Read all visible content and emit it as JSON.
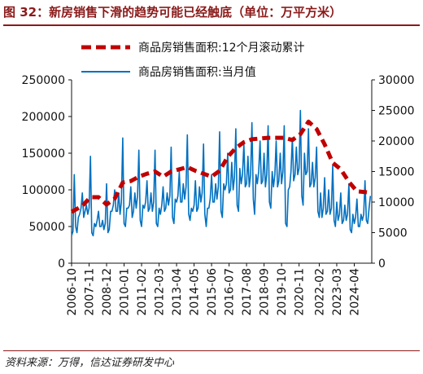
{
  "figure": {
    "title": "图 32：新房销售下滑的趋势可能已经触底（单位：万平方米）",
    "source": "资料来源：万得，信达证券研发中心"
  },
  "chart_data": {
    "type": "line",
    "title": "",
    "xlabel": "",
    "ylabel": "",
    "grid": false,
    "legend_placement": "top",
    "x_tick_labels": [
      "2006-10",
      "2007-11",
      "2008-12",
      "2010-01",
      "2011-02",
      "2012-03",
      "2013-04",
      "2014-05",
      "2015-06",
      "2016-07",
      "2017-08",
      "2018-09",
      "2019-10",
      "2020-11",
      "2022-02",
      "2023-03",
      "2024-04"
    ],
    "x_range": [
      "2006-10",
      "2025-05"
    ],
    "y_left": {
      "ylim": [
        0,
        250000
      ],
      "ticks": [
        "0",
        "50000",
        "100000",
        "150000",
        "200000",
        "250000"
      ]
    },
    "y_right": {
      "ylim": [
        0,
        30000
      ],
      "ticks": [
        "0",
        "5000",
        "10000",
        "15000",
        "20000",
        "25000",
        "30000"
      ]
    },
    "series": [
      {
        "name": "商品房销售面积:12个月滚动累计",
        "axis": "left",
        "color": "#c00000",
        "style": "dashed-thick",
        "points": [
          [
            "2006-10",
            70000
          ],
          [
            "2007-06",
            78000
          ],
          [
            "2007-12",
            90000
          ],
          [
            "2008-06",
            90000
          ],
          [
            "2008-12",
            80000
          ],
          [
            "2009-06",
            88000
          ],
          [
            "2009-12",
            110000
          ],
          [
            "2010-06",
            112000
          ],
          [
            "2010-12",
            118000
          ],
          [
            "2011-06",
            122000
          ],
          [
            "2011-12",
            125000
          ],
          [
            "2012-06",
            118000
          ],
          [
            "2012-12",
            125000
          ],
          [
            "2013-06",
            128000
          ],
          [
            "2013-12",
            131000
          ],
          [
            "2014-06",
            126000
          ],
          [
            "2014-12",
            122000
          ],
          [
            "2015-06",
            118000
          ],
          [
            "2015-12",
            126000
          ],
          [
            "2016-06",
            145000
          ],
          [
            "2016-12",
            157000
          ],
          [
            "2017-06",
            165000
          ],
          [
            "2017-12",
            169000
          ],
          [
            "2018-06",
            170000
          ],
          [
            "2018-12",
            171000
          ],
          [
            "2019-06",
            171000
          ],
          [
            "2019-12",
            171000
          ],
          [
            "2020-06",
            168000
          ],
          [
            "2020-12",
            176000
          ],
          [
            "2021-06",
            193000
          ],
          [
            "2021-12",
            183000
          ],
          [
            "2022-06",
            162000
          ],
          [
            "2022-12",
            137000
          ],
          [
            "2023-06",
            128000
          ],
          [
            "2023-12",
            111000
          ],
          [
            "2024-06",
            98000
          ],
          [
            "2024-12",
            97000
          ],
          [
            "2025-04",
            96000
          ]
        ]
      },
      {
        "name": "商品房销售面积:当月值",
        "axis": "right",
        "color": "#0070c0",
        "style": "solid",
        "points": [
          [
            "2006-10",
            4500
          ],
          [
            "2006-11",
            5200
          ],
          [
            "2006-12",
            14500
          ],
          [
            "2007-01",
            6000
          ],
          [
            "2007-02",
            5000
          ],
          [
            "2007-03",
            7500
          ],
          [
            "2007-04",
            8000
          ],
          [
            "2007-05",
            9000
          ],
          [
            "2007-06",
            11500
          ],
          [
            "2007-07",
            7500
          ],
          [
            "2007-08",
            8500
          ],
          [
            "2007-09",
            9500
          ],
          [
            "2007-10",
            8000
          ],
          [
            "2007-11",
            9000
          ],
          [
            "2007-12",
            17500
          ],
          [
            "2008-01",
            5000
          ],
          [
            "2008-02",
            4500
          ],
          [
            "2008-03",
            6500
          ],
          [
            "2008-04",
            6000
          ],
          [
            "2008-05",
            7000
          ],
          [
            "2008-06",
            8500
          ],
          [
            "2008-07",
            6000
          ],
          [
            "2008-08",
            6000
          ],
          [
            "2008-09",
            7000
          ],
          [
            "2008-10",
            5500
          ],
          [
            "2008-11",
            6500
          ],
          [
            "2008-12",
            13000
          ],
          [
            "2009-01",
            5000
          ],
          [
            "2009-02",
            5500
          ],
          [
            "2009-03",
            8500
          ],
          [
            "2009-04",
            8500
          ],
          [
            "2009-05",
            9500
          ],
          [
            "2009-06",
            12000
          ],
          [
            "2009-07",
            8500
          ],
          [
            "2009-08",
            8500
          ],
          [
            "2009-09",
            11500
          ],
          [
            "2009-10",
            8000
          ],
          [
            "2009-11",
            10000
          ],
          [
            "2009-12",
            20500
          ],
          [
            "2010-01",
            6500
          ],
          [
            "2010-02",
            6000
          ],
          [
            "2010-03",
            9000
          ],
          [
            "2010-04",
            9000
          ],
          [
            "2010-05",
            9500
          ],
          [
            "2010-06",
            12500
          ],
          [
            "2010-07",
            7500
          ],
          [
            "2010-08",
            8500
          ],
          [
            "2010-09",
            11500
          ],
          [
            "2010-10",
            9000
          ],
          [
            "2010-11",
            11000
          ],
          [
            "2010-12",
            18500
          ],
          [
            "2011-01",
            7000
          ],
          [
            "2011-02",
            6000
          ],
          [
            "2011-03",
            9500
          ],
          [
            "2011-04",
            9000
          ],
          [
            "2011-05",
            10000
          ],
          [
            "2011-06",
            13500
          ],
          [
            "2011-07",
            8500
          ],
          [
            "2011-08",
            9000
          ],
          [
            "2011-09",
            11500
          ],
          [
            "2011-10",
            8500
          ],
          [
            "2011-11",
            10000
          ],
          [
            "2011-12",
            18500
          ],
          [
            "2012-01",
            6500
          ],
          [
            "2012-02",
            6000
          ],
          [
            "2012-03",
            9000
          ],
          [
            "2012-04",
            8000
          ],
          [
            "2012-05",
            9500
          ],
          [
            "2012-06",
            12500
          ],
          [
            "2012-07",
            8500
          ],
          [
            "2012-08",
            9000
          ],
          [
            "2012-09",
            11500
          ],
          [
            "2012-10",
            9500
          ],
          [
            "2012-11",
            11000
          ],
          [
            "2012-12",
            19000
          ],
          [
            "2013-01",
            7500
          ],
          [
            "2013-02",
            6500
          ],
          [
            "2013-03",
            10500
          ],
          [
            "2013-04",
            10000
          ],
          [
            "2013-05",
            11000
          ],
          [
            "2013-06",
            15000
          ],
          [
            "2013-07",
            10000
          ],
          [
            "2013-08",
            10000
          ],
          [
            "2013-09",
            13000
          ],
          [
            "2013-10",
            10500
          ],
          [
            "2013-11",
            12500
          ],
          [
            "2013-12",
            21000
          ],
          [
            "2014-01",
            8000
          ],
          [
            "2014-02",
            7000
          ],
          [
            "2014-03",
            9000
          ],
          [
            "2014-04",
            8500
          ],
          [
            "2014-05",
            9500
          ],
          [
            "2014-06",
            13500
          ],
          [
            "2014-07",
            8500
          ],
          [
            "2014-08",
            9000
          ],
          [
            "2014-09",
            12500
          ],
          [
            "2014-10",
            10000
          ],
          [
            "2014-11",
            11500
          ],
          [
            "2014-12",
            19500
          ],
          [
            "2015-01",
            8000
          ],
          [
            "2015-02",
            6000
          ],
          [
            "2015-03",
            9000
          ],
          [
            "2015-04",
            9000
          ],
          [
            "2015-05",
            10500
          ],
          [
            "2015-06",
            14500
          ],
          [
            "2015-07",
            10000
          ],
          [
            "2015-08",
            10000
          ],
          [
            "2015-09",
            13000
          ],
          [
            "2015-10",
            10500
          ],
          [
            "2015-11",
            12500
          ],
          [
            "2015-12",
            21500
          ],
          [
            "2016-01",
            8500
          ],
          [
            "2016-02",
            7500
          ],
          [
            "2016-03",
            13000
          ],
          [
            "2016-04",
            12000
          ],
          [
            "2016-05",
            13000
          ],
          [
            "2016-06",
            18000
          ],
          [
            "2016-07",
            11500
          ],
          [
            "2016-08",
            12000
          ],
          [
            "2016-09",
            16500
          ],
          [
            "2016-10",
            12000
          ],
          [
            "2016-11",
            14000
          ],
          [
            "2016-12",
            22000
          ],
          [
            "2017-01",
            9500
          ],
          [
            "2017-02",
            8500
          ],
          [
            "2017-03",
            15500
          ],
          [
            "2017-04",
            13000
          ],
          [
            "2017-05",
            14500
          ],
          [
            "2017-06",
            19500
          ],
          [
            "2017-07",
            12500
          ],
          [
            "2017-08",
            13000
          ],
          [
            "2017-09",
            17500
          ],
          [
            "2017-10",
            12500
          ],
          [
            "2017-11",
            14500
          ],
          [
            "2017-12",
            23000
          ],
          [
            "2018-01",
            10500
          ],
          [
            "2018-02",
            8000
          ],
          [
            "2018-03",
            14500
          ],
          [
            "2018-04",
            13000
          ],
          [
            "2018-05",
            15000
          ],
          [
            "2018-06",
            20000
          ],
          [
            "2018-07",
            13000
          ],
          [
            "2018-08",
            13500
          ],
          [
            "2018-09",
            18000
          ],
          [
            "2018-10",
            12500
          ],
          [
            "2018-11",
            14500
          ],
          [
            "2018-12",
            22500
          ],
          [
            "2019-01",
            10000
          ],
          [
            "2019-02",
            9000
          ],
          [
            "2019-03",
            15000
          ],
          [
            "2019-04",
            12500
          ],
          [
            "2019-05",
            14500
          ],
          [
            "2019-06",
            20000
          ],
          [
            "2019-07",
            12500
          ],
          [
            "2019-08",
            13500
          ],
          [
            "2019-09",
            18000
          ],
          [
            "2019-10",
            13000
          ],
          [
            "2019-11",
            15000
          ],
          [
            "2019-12",
            22500
          ],
          [
            "2020-01",
            6500
          ],
          [
            "2020-02",
            6000
          ],
          [
            "2020-03",
            12000
          ],
          [
            "2020-04",
            12500
          ],
          [
            "2020-05",
            15000
          ],
          [
            "2020-06",
            20500
          ],
          [
            "2020-07",
            13500
          ],
          [
            "2020-08",
            14500
          ],
          [
            "2020-09",
            19000
          ],
          [
            "2020-10",
            14500
          ],
          [
            "2020-11",
            15500
          ],
          [
            "2020-12",
            25000
          ],
          [
            "2021-01",
            11000
          ],
          [
            "2021-02",
            9500
          ],
          [
            "2021-03",
            18000
          ],
          [
            "2021-04",
            14500
          ],
          [
            "2021-05",
            15000
          ],
          [
            "2021-06",
            22000
          ],
          [
            "2021-07",
            12500
          ],
          [
            "2021-08",
            13000
          ],
          [
            "2021-09",
            16500
          ],
          [
            "2021-10",
            12500
          ],
          [
            "2021-11",
            14000
          ],
          [
            "2021-12",
            19000
          ],
          [
            "2022-01",
            8500
          ],
          [
            "2022-02",
            7500
          ],
          [
            "2022-03",
            11500
          ],
          [
            "2022-04",
            7500
          ],
          [
            "2022-05",
            9000
          ],
          [
            "2022-06",
            14000
          ],
          [
            "2022-07",
            8000
          ],
          [
            "2022-08",
            8500
          ],
          [
            "2022-09",
            12000
          ],
          [
            "2022-10",
            8000
          ],
          [
            "2022-11",
            9000
          ],
          [
            "2022-12",
            16000
          ],
          [
            "2023-01",
            7000
          ],
          [
            "2023-02",
            6000
          ],
          [
            "2023-03",
            10000
          ],
          [
            "2023-04",
            7000
          ],
          [
            "2023-05",
            8000
          ],
          [
            "2023-06",
            11500
          ],
          [
            "2023-07",
            6500
          ],
          [
            "2023-08",
            7000
          ],
          [
            "2023-09",
            9500
          ],
          [
            "2023-10",
            7000
          ],
          [
            "2023-11",
            8000
          ],
          [
            "2023-12",
            13000
          ],
          [
            "2024-01",
            5500
          ],
          [
            "2024-02",
            5000
          ],
          [
            "2024-03",
            8000
          ],
          [
            "2024-04",
            6500
          ],
          [
            "2024-05",
            7500
          ],
          [
            "2024-06",
            10500
          ],
          [
            "2024-07",
            6000
          ],
          [
            "2024-08",
            6000
          ],
          [
            "2024-09",
            8000
          ],
          [
            "2024-10",
            7000
          ],
          [
            "2024-11",
            8000
          ],
          [
            "2024-12",
            13500
          ],
          [
            "2025-01",
            7000
          ],
          [
            "2025-02",
            6500
          ],
          [
            "2025-03",
            9000
          ],
          [
            "2025-04",
            11000
          ]
        ]
      }
    ]
  }
}
